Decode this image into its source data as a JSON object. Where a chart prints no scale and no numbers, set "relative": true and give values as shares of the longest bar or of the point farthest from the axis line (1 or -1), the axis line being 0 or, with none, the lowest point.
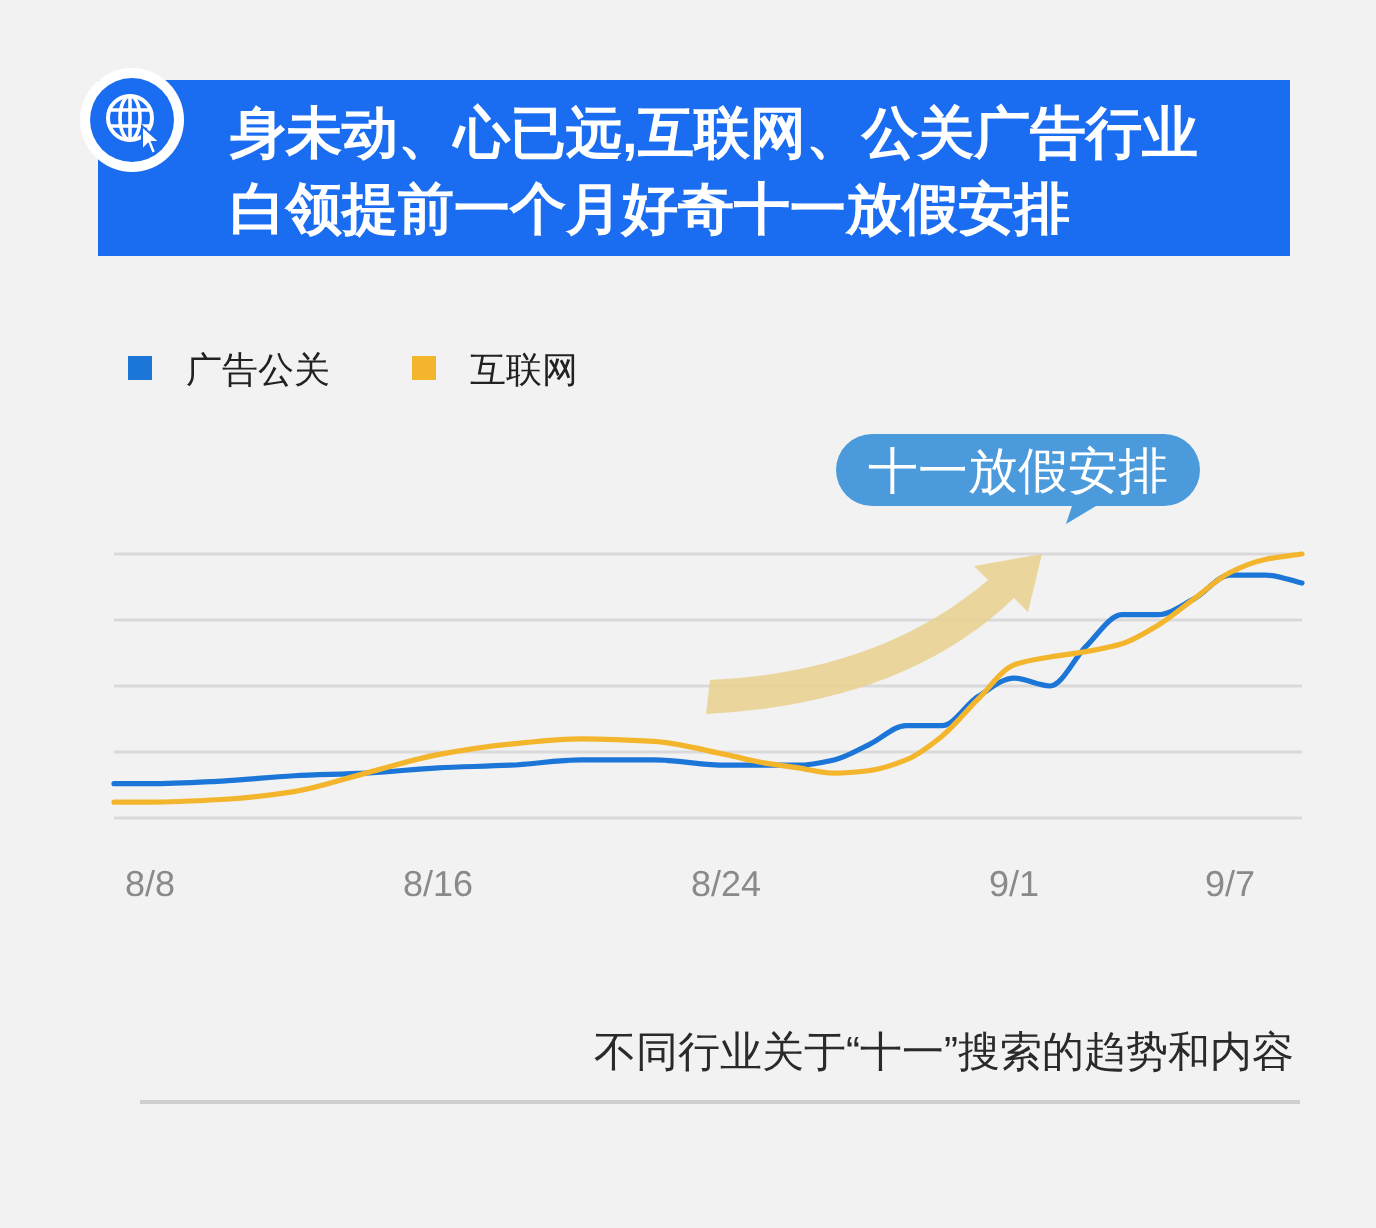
{
  "chart_data": {
    "type": "line",
    "title": "身未动、心已远,互联网、公关广告行业白领提前一个月好奇十一放假安排",
    "x": [
      "--08-07",
      "--08-08",
      "--08-10",
      "--08-12",
      "--08-14",
      "--08-16",
      "--08-18",
      "--08-20",
      "--08-22",
      "--08-24",
      "--08-25",
      "--08-26",
      "--08-27",
      "--08-28",
      "--08-29",
      "--08-30",
      "--08-31",
      "--09-01",
      "--09-02",
      "--09-03",
      "--09-04",
      "--09-05",
      "--09-06",
      "--09-07",
      "--09-08",
      "--09-09"
    ],
    "series": [
      {
        "name": "广告公关",
        "color": "#1b76d8",
        "values": [
          0.13,
          0.13,
          0.14,
          0.16,
          0.17,
          0.19,
          0.2,
          0.22,
          0.22,
          0.2,
          0.2,
          0.2,
          0.22,
          0.28,
          0.35,
          0.35,
          0.46,
          0.53,
          0.5,
          0.65,
          0.77,
          0.77,
          0.83,
          0.92,
          0.92,
          0.89
        ]
      },
      {
        "name": "互联网",
        "color": "#f3b52c",
        "values": [
          0.06,
          0.06,
          0.07,
          0.1,
          0.17,
          0.24,
          0.28,
          0.3,
          0.29,
          0.24,
          0.21,
          0.19,
          0.17,
          0.18,
          0.22,
          0.31,
          0.45,
          0.58,
          0.61,
          0.63,
          0.66,
          0.73,
          0.83,
          0.93,
          0.98,
          1
        ]
      }
    ],
    "relative": true,
    "xlim": [
      "--08-07",
      "--09-09"
    ],
    "xticks": [
      {
        "value": "--08-08",
        "label": "8/8"
      },
      {
        "value": "--08-16",
        "label": "8/16"
      },
      {
        "value": "--08-24",
        "label": "8/24"
      },
      {
        "value": "--09-01",
        "label": "9/1"
      },
      {
        "value": "--09-07",
        "label": "9/7"
      }
    ],
    "grid": "y",
    "legend": "top left",
    "annotations": [
      "十一放假安排",
      "不同行业关于“十一”搜索的趋势和内容"
    ]
  }
}
